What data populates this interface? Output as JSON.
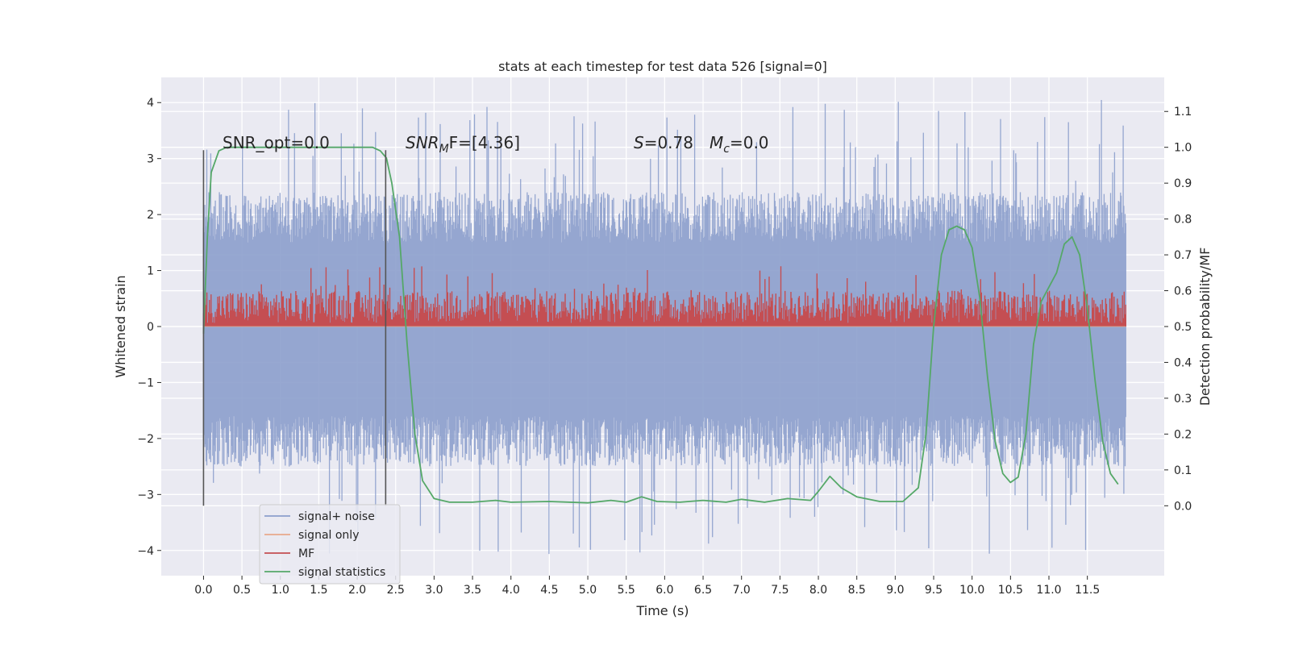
{
  "chart_data": {
    "type": "line",
    "title": "stats at each timestep for test data 526 [signal=0]",
    "xlabel": "Time (s)",
    "ylabel": "Whitened strain",
    "ylabel_right": "Detection probability/MF",
    "xlim": [
      -0.55,
      12.5
    ],
    "ylim": [
      -4.45,
      4.45
    ],
    "ylim_right": [
      -0.195,
      1.195
    ],
    "x_ticks": [
      0.0,
      0.5,
      1.0,
      1.5,
      2.0,
      2.5,
      3.0,
      3.5,
      4.0,
      4.5,
      5.0,
      5.5,
      6.0,
      6.5,
      7.0,
      7.5,
      8.0,
      8.5,
      9.0,
      9.5,
      10.0,
      10.5,
      11.0,
      11.5
    ],
    "x_tick_labels": [
      "0.0",
      "0.5",
      "1.0",
      "1.5",
      "2.0",
      "2.5",
      "3.0",
      "3.5",
      "4.0",
      "4.5",
      "5.0",
      "5.5",
      "6.0",
      "6.5",
      "7.0",
      "7.5",
      "8.0",
      "8.5",
      "9.0",
      "9.5",
      "10.0",
      "10.5",
      "11.0",
      "11.5"
    ],
    "y_ticks": [
      -4,
      -3,
      -2,
      -1,
      0,
      1,
      2,
      3,
      4
    ],
    "y_tick_labels": [
      "−4",
      "−3",
      "−2",
      "−1",
      "0",
      "1",
      "2",
      "3",
      "4"
    ],
    "y_right_ticks": [
      0.0,
      0.1,
      0.2,
      0.3,
      0.4,
      0.5,
      0.6,
      0.7,
      0.8,
      0.9,
      1.0,
      1.1
    ],
    "y_right_tick_labels": [
      "0.0",
      "0.1",
      "0.2",
      "0.3",
      "0.4",
      "0.5",
      "0.6",
      "0.7",
      "0.8",
      "0.9",
      "1.0",
      "1.1"
    ],
    "grid": true,
    "legend_position": "bottom-left",
    "legend": [
      {
        "name": "signal+ noise",
        "color": "#8c9fcc"
      },
      {
        "name": "signal only",
        "color": "#e8a98b"
      },
      {
        "name": "MF",
        "color": "#c44e52"
      },
      {
        "name": "signal statistics",
        "color": "#55a868"
      }
    ],
    "annotations": {
      "snr_opt_label": "SNR_opt=0.0",
      "snr_mf_name": "SNR",
      "snr_mf_sub": "M",
      "snr_mf_rest": "F=[4.36]",
      "s_name": "S",
      "s_value": "=0.78",
      "mc_name": "M",
      "mc_sub": "c",
      "mc_value": "=0.0"
    },
    "vertical_markers_x": [
      0.0,
      2.37
    ],
    "noise_series": {
      "name": "signal+ noise",
      "axis": "left",
      "x_range": [
        0.0,
        12.0
      ],
      "band": [
        -1.6,
        1.5
      ],
      "spike_max": 4.05,
      "spike_min": -4.1
    },
    "mf_series": {
      "name": "MF",
      "axis": "right",
      "x_range": [
        0.0,
        12.0
      ],
      "band": [
        0.5,
        0.6
      ],
      "max": 0.67
    },
    "statistics_series": {
      "name": "signal statistics",
      "axis": "right",
      "points": [
        [
          0.0,
          0.48
        ],
        [
          0.05,
          0.75
        ],
        [
          0.1,
          0.93
        ],
        [
          0.2,
          0.99
        ],
        [
          0.3,
          1.0
        ],
        [
          0.6,
          1.0
        ],
        [
          1.0,
          1.0
        ],
        [
          1.5,
          1.0
        ],
        [
          2.0,
          1.0
        ],
        [
          2.2,
          1.0
        ],
        [
          2.3,
          0.99
        ],
        [
          2.38,
          0.97
        ],
        [
          2.45,
          0.9
        ],
        [
          2.55,
          0.75
        ],
        [
          2.65,
          0.45
        ],
        [
          2.75,
          0.2
        ],
        [
          2.85,
          0.07
        ],
        [
          3.0,
          0.02
        ],
        [
          3.2,
          0.01
        ],
        [
          3.5,
          0.01
        ],
        [
          3.8,
          0.015
        ],
        [
          4.0,
          0.01
        ],
        [
          4.5,
          0.012
        ],
        [
          5.0,
          0.008
        ],
        [
          5.3,
          0.015
        ],
        [
          5.5,
          0.01
        ],
        [
          5.7,
          0.025
        ],
        [
          5.9,
          0.012
        ],
        [
          6.2,
          0.01
        ],
        [
          6.5,
          0.015
        ],
        [
          6.8,
          0.01
        ],
        [
          7.0,
          0.018
        ],
        [
          7.3,
          0.01
        ],
        [
          7.6,
          0.02
        ],
        [
          7.9,
          0.015
        ],
        [
          8.0,
          0.04
        ],
        [
          8.15,
          0.082
        ],
        [
          8.3,
          0.05
        ],
        [
          8.5,
          0.025
        ],
        [
          8.8,
          0.012
        ],
        [
          9.1,
          0.012
        ],
        [
          9.3,
          0.05
        ],
        [
          9.4,
          0.2
        ],
        [
          9.5,
          0.5
        ],
        [
          9.6,
          0.7
        ],
        [
          9.7,
          0.77
        ],
        [
          9.8,
          0.78
        ],
        [
          9.9,
          0.77
        ],
        [
          10.0,
          0.72
        ],
        [
          10.1,
          0.58
        ],
        [
          10.2,
          0.36
        ],
        [
          10.3,
          0.18
        ],
        [
          10.4,
          0.09
        ],
        [
          10.5,
          0.065
        ],
        [
          10.6,
          0.08
        ],
        [
          10.7,
          0.2
        ],
        [
          10.8,
          0.45
        ],
        [
          10.9,
          0.57
        ],
        [
          11.0,
          0.61
        ],
        [
          11.1,
          0.65
        ],
        [
          11.2,
          0.73
        ],
        [
          11.3,
          0.75
        ],
        [
          11.4,
          0.7
        ],
        [
          11.5,
          0.55
        ],
        [
          11.6,
          0.35
        ],
        [
          11.7,
          0.18
        ],
        [
          11.8,
          0.09
        ],
        [
          11.9,
          0.06
        ]
      ]
    },
    "signal_only_series": {
      "name": "signal only",
      "axis": "left",
      "value": 0.0
    }
  }
}
